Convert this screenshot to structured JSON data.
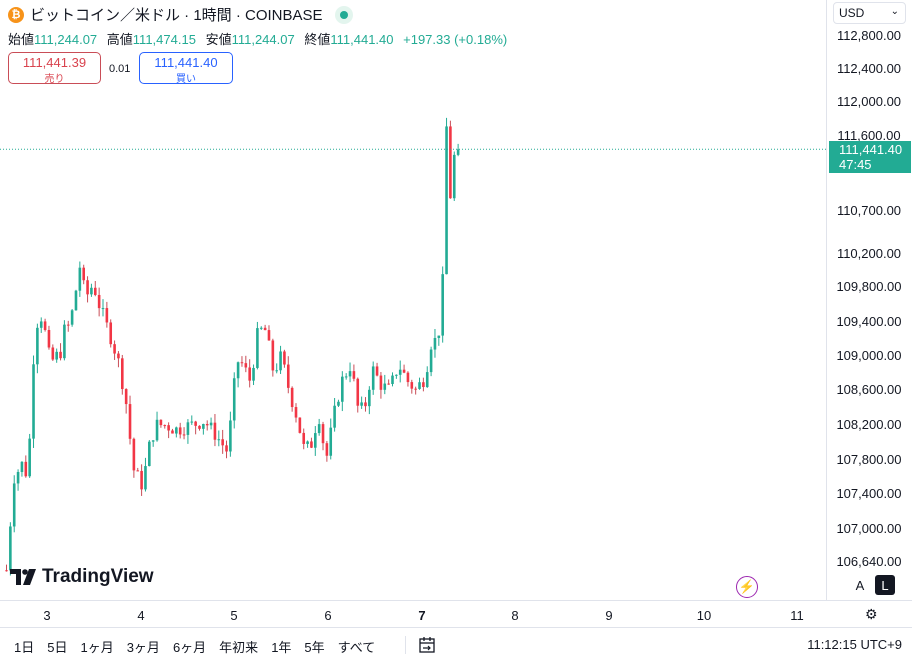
{
  "header": {
    "title": "ビットコイン／米ドル · 1時間 · COINBASE",
    "coin_icon": "bitcoin-icon",
    "live_indicator": "live-dot-icon"
  },
  "ohlc": {
    "open_label": "始値",
    "open": "111,244.07",
    "high_label": "高値",
    "high": "111,474.15",
    "low_label": "安値",
    "low": "111,244.07",
    "close_label": "終値",
    "close": "111,441.40",
    "change": "+197.33 (+0.18%)"
  },
  "trade": {
    "sell_price": "111,441.39",
    "sell_label": "売り",
    "spread": "0.01",
    "buy_price": "111,441.40",
    "buy_label": "買い"
  },
  "logo": {
    "text": "TradingView"
  },
  "currency": {
    "label": "USD"
  },
  "price_axis": {
    "labels": [
      "112,800.00",
      "112,400.00",
      "112,000.00",
      "111,600.00",
      "110,700.00",
      "110,200.00",
      "109,800.00",
      "109,400.00",
      "109,000.00",
      "108,600.00",
      "108,200.00",
      "107,800.00",
      "107,400.00",
      "107,000.00",
      "106,640.00"
    ],
    "last_price": "111,441.40",
    "countdown": "47:45"
  },
  "scale_buttons": {
    "auto": "A",
    "log": "L"
  },
  "time_axis": {
    "labels": [
      "3",
      "4",
      "5",
      "6",
      "7",
      "8",
      "9",
      "10",
      "11"
    ]
  },
  "bottom_bar": {
    "ranges": [
      "1日",
      "5日",
      "1ヶ月",
      "3ヶ月",
      "6ヶ月",
      "年初来",
      "1年",
      "5年",
      "すべて"
    ],
    "clock": "11:12:15 UTC+9"
  },
  "colors": {
    "up": "#22ab94",
    "down": "#f23645",
    "down_wick": "#c94d57",
    "last_price_line": "#22ab94"
  },
  "chart_data": {
    "type": "candlestick",
    "symbol": "ビットコイン／米ドル",
    "interval": "1時間",
    "exchange": "COINBASE",
    "price_range": [
      106500,
      113000
    ],
    "series_note": "approximate path of candle closes across the visible days",
    "x_ticks": [
      "3",
      "4",
      "5",
      "6",
      "7",
      "8",
      "9",
      "10",
      "11"
    ],
    "keypoints": [
      [
        0,
        106550
      ],
      [
        0.5,
        107600
      ],
      [
        1,
        107750
      ],
      [
        1.4,
        107600
      ],
      [
        1.7,
        108900
      ],
      [
        2,
        109400
      ],
      [
        2.4,
        109500
      ],
      [
        2.6,
        109050
      ],
      [
        3.0,
        108950
      ],
      [
        3.5,
        109050
      ],
      [
        3.8,
        109350
      ],
      [
        4.0,
        109350
      ],
      [
        4.4,
        109600
      ],
      [
        4.7,
        110100
      ],
      [
        5.0,
        109800
      ],
      [
        5.3,
        109700
      ],
      [
        5.6,
        109850
      ],
      [
        6.0,
        109600
      ],
      [
        6.4,
        109400
      ],
      [
        6.8,
        109200
      ],
      [
        7.3,
        108900
      ],
      [
        7.8,
        108400
      ],
      [
        8.2,
        107700
      ],
      [
        8.8,
        107500
      ],
      [
        9.3,
        108000
      ],
      [
        9.7,
        108200
      ],
      [
        10.3,
        108200
      ],
      [
        11.0,
        108150
      ],
      [
        12.0,
        108200
      ],
      [
        12.8,
        108250
      ],
      [
        13.5,
        108100
      ],
      [
        14.3,
        107900
      ],
      [
        14.6,
        108350
      ],
      [
        14.9,
        108950
      ],
      [
        15.3,
        108900
      ],
      [
        15.8,
        108700
      ],
      [
        16.3,
        109300
      ],
      [
        16.8,
        109300
      ],
      [
        17.3,
        108800
      ],
      [
        17.8,
        109000
      ],
      [
        18.3,
        108600
      ],
      [
        18.8,
        108300
      ],
      [
        19.3,
        107900
      ],
      [
        19.8,
        108000
      ],
      [
        20.2,
        108350
      ],
      [
        20.7,
        107800
      ],
      [
        21.2,
        108300
      ],
      [
        21.7,
        108700
      ],
      [
        22.3,
        108900
      ],
      [
        22.8,
        108350
      ],
      [
        23.2,
        108400
      ],
      [
        23.7,
        108850
      ],
      [
        24.3,
        108650
      ],
      [
        24.8,
        108600
      ],
      [
        25.4,
        108900
      ],
      [
        26.0,
        108700
      ],
      [
        26.5,
        108600
      ],
      [
        27.1,
        108750
      ],
      [
        27.5,
        109150
      ],
      [
        27.9,
        109200
      ],
      [
        28.2,
        109500
      ],
      [
        28.5,
        111700
      ],
      [
        28.7,
        110700
      ],
      [
        28.9,
        111450
      ],
      [
        29.2,
        111150
      ],
      [
        29.4,
        111440
      ]
    ]
  }
}
